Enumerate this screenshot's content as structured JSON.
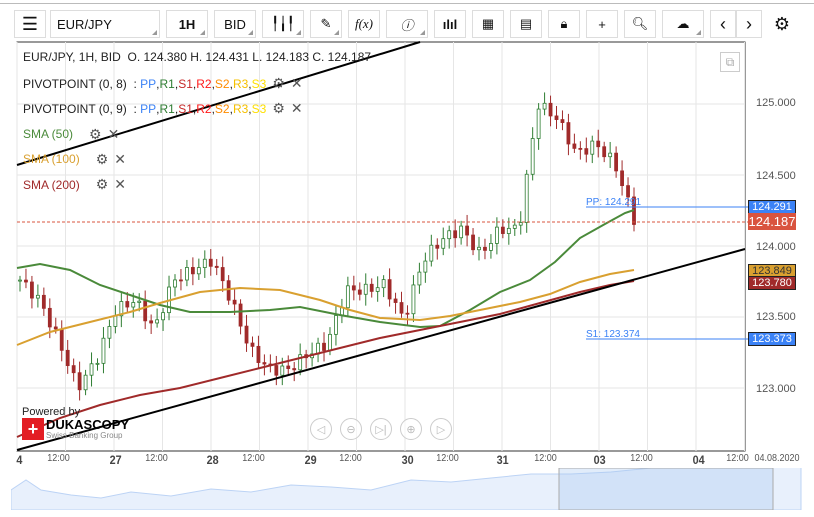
{
  "toolbar": {
    "symbol": "EUR/JPY",
    "timeframe": "1H",
    "price_type": "BID",
    "icons": [
      "menu-icon",
      "candles-icon",
      "draw-icon",
      "function-icon",
      "info-icon",
      "volume-icon",
      "calendar-icon",
      "report-icon",
      "lock-icon",
      "crosshair-icon",
      "zoom-icon",
      "upload-icon",
      "prev-icon",
      "next-icon",
      "gear-icon"
    ],
    "fx_label": "f(x)"
  },
  "ohlc": {
    "text": "EUR/JPY, 1H, BID",
    "o": "O. 124.380",
    "h": "H. 124.431",
    "l": "L. 124.183",
    "c": "C. 124.187"
  },
  "indicators": [
    {
      "name": "PIVOTPOINT (0, 8)",
      "parts": [
        "PP",
        "R1",
        "S1",
        "R2",
        "S2",
        "R3",
        "S3"
      ]
    },
    {
      "name": "PIVOTPOINT (0, 9)",
      "parts": [
        "PP",
        "R1",
        "S1",
        "R2",
        "S2",
        "R3",
        "S3"
      ]
    },
    {
      "name": "SMA (50)",
      "color": "#4a8a3a"
    },
    {
      "name": "SMA (100)",
      "color": "#d9a030"
    },
    {
      "name": "SMA (200)",
      "color": "#a02a2a"
    }
  ],
  "part_colors": [
    "#3b82f6",
    "#2e7d32",
    "#c62828",
    "#ff1a1a",
    "#ff8c00",
    "#f5c000",
    "#ffe000"
  ],
  "price_axis": [
    "125.000",
    "124.500",
    "124.000",
    "123.500",
    "123.000"
  ],
  "price_labels": {
    "pp": "124.291",
    "last": "124.187",
    "sma100": "123.849",
    "sma200": "123.780",
    "s1": "123.373"
  },
  "line_labels": {
    "pp": "PP: 124.291",
    "s1": "S1: 123.374"
  },
  "time_axis": [
    {
      "t": "4",
      "big": true
    },
    {
      "t": "12:00"
    },
    {
      "t": "27",
      "big": true
    },
    {
      "t": "12:00"
    },
    {
      "t": "28",
      "big": true
    },
    {
      "t": "12:00"
    },
    {
      "t": "29",
      "big": true
    },
    {
      "t": "12:00"
    },
    {
      "t": "30",
      "big": true
    },
    {
      "t": "12:00"
    },
    {
      "t": "31",
      "big": true
    },
    {
      "t": "12:00"
    },
    {
      "t": "03",
      "big": true
    },
    {
      "t": "12:00"
    },
    {
      "t": "04",
      "big": true
    },
    {
      "t": "12:00"
    }
  ],
  "date_label": "04.08.2020",
  "brand": {
    "powered": "Powered by",
    "name": "DUKASCOPY",
    "sub": "Swiss Banking Group"
  },
  "price_path": [
    123.76,
    123.62,
    123.34,
    123.0,
    123.2,
    123.55,
    123.62,
    123.41,
    123.76,
    123.83,
    123.9,
    123.62,
    123.27,
    123.13,
    123.13,
    123.24,
    123.31,
    123.69,
    123.69,
    123.73,
    123.48,
    123.9,
    124.05,
    124.12,
    123.94,
    124.12,
    124.12,
    125.0,
    124.9,
    124.65,
    124.72,
    124.58,
    124.19
  ],
  "colors": {
    "up": "#2e7d32",
    "down": "#a02a2a",
    "pp": "#3b82f6",
    "last": "#d9543f",
    "sma100": "#d9a030",
    "sma200": "#a02a2a"
  }
}
